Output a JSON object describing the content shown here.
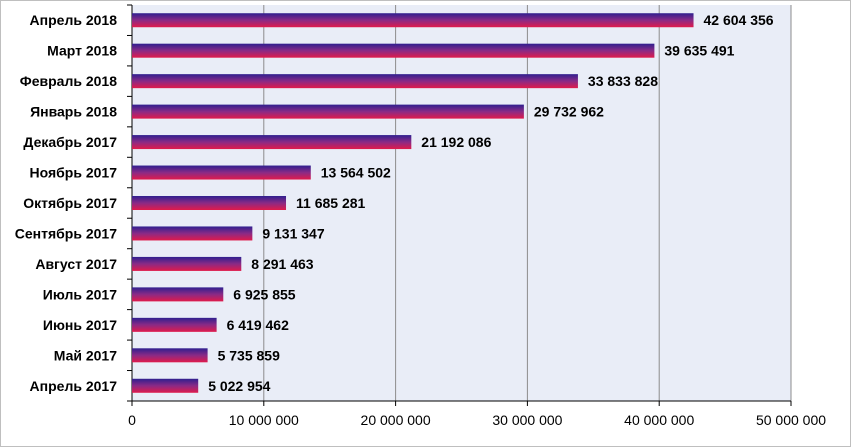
{
  "chart_data": {
    "type": "bar",
    "orientation": "horizontal",
    "categories": [
      "Апрель 2018",
      "Март 2018",
      "Февраль 2018",
      "Январь 2018",
      "Декабрь 2017",
      "Ноябрь 2017",
      "Октябрь 2017",
      "Сентябрь 2017",
      "Август 2017",
      "Июль 2017",
      "Июнь 2017",
      "Май 2017",
      "Апрель 2017"
    ],
    "values": [
      42604356,
      39635491,
      33833828,
      29732962,
      21192086,
      13564502,
      11685281,
      9131347,
      8291463,
      6925855,
      6419462,
      5735859,
      5022954
    ],
    "value_labels": [
      "42 604 356",
      "39 635 491",
      "33 833 828",
      "29 732 962",
      "21 192 086",
      "13 564 502",
      "11 685 281",
      "9 131 347",
      "8 291 463",
      "6 925 855",
      "6 419 462",
      "5 735 859",
      "5 022 954"
    ],
    "xlim": [
      0,
      50000000
    ],
    "x_ticks": [
      0,
      10000000,
      20000000,
      30000000,
      40000000,
      50000000
    ],
    "x_tick_labels": [
      "0",
      "10 000 000",
      "20 000 000",
      "30 000 000",
      "40 000 000",
      "50 000 000"
    ],
    "grid": "vertical",
    "legend": "none",
    "colors": {
      "plot_background": "#e9edf7",
      "gridline": "#8c8c8c",
      "bar_top": "#2f1f8f",
      "bar_middle": "#8a2a86",
      "bar_bottom": "#e01a4b"
    }
  }
}
